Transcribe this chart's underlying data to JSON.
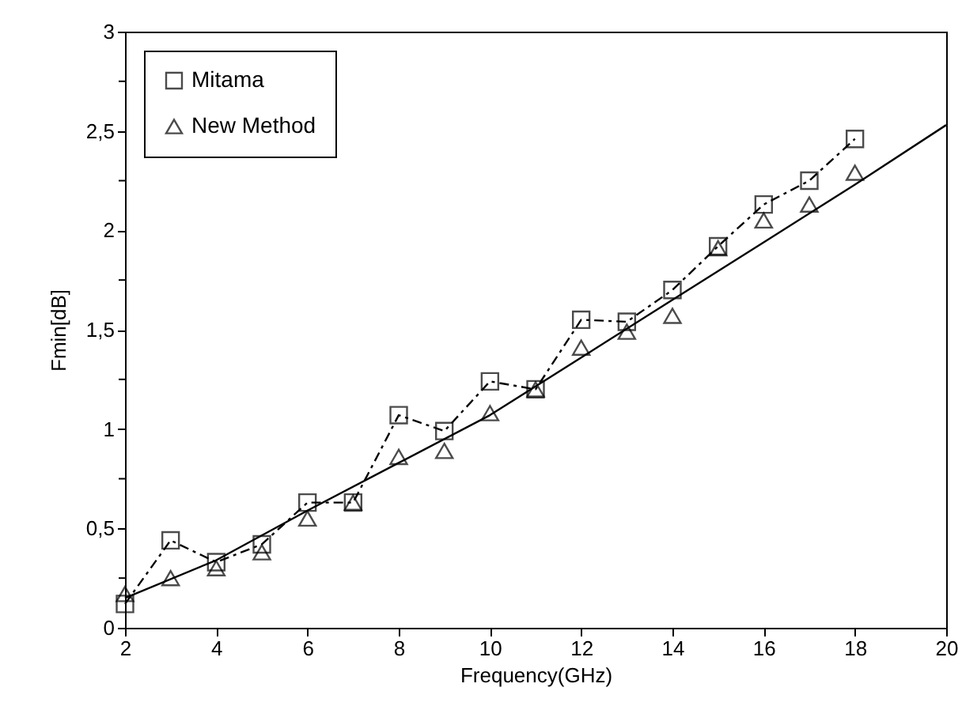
{
  "chart_data": {
    "type": "line",
    "xlabel": "Frequency(GHz)",
    "ylabel": "Fmin[dB]",
    "xlim": [
      2,
      20
    ],
    "xticks": [
      2,
      4,
      6,
      8,
      10,
      12,
      14,
      16,
      18,
      20
    ],
    "ylim": [
      0,
      3
    ],
    "yticks": [
      0,
      {
        "value": 0.25,
        "label": null
      },
      {
        "value": 0.5,
        "label": "0,5"
      },
      {
        "value": 0.75,
        "label": null
      },
      1,
      {
        "value": 1.25,
        "label": null
      },
      {
        "value": 1.5,
        "label": "1,5"
      },
      {
        "value": 1.75,
        "label": null
      },
      2,
      {
        "value": 2.25,
        "label": null
      },
      {
        "value": 2.5,
        "label": "2,5"
      },
      {
        "value": 2.75,
        "label": null
      },
      3
    ],
    "legend": "top left",
    "grid": false,
    "series": [
      {
        "name": "Mitama",
        "color": "#000000",
        "marker": "square",
        "line_style": "dashed",
        "x": [
          2,
          3,
          4,
          5,
          6,
          7,
          8,
          9,
          10,
          11,
          12,
          13,
          14,
          15,
          16,
          17,
          18
        ],
        "values": [
          0.12,
          0.44,
          0.33,
          0.42,
          0.63,
          0.63,
          1.07,
          0.99,
          1.24,
          1.2,
          1.55,
          1.54,
          1.7,
          1.92,
          2.13,
          2.25,
          2.46
        ]
      },
      {
        "name": "New Method",
        "type": "scatter",
        "color": "#000000",
        "marker": "triangle",
        "x": [
          2,
          3,
          4,
          5,
          6,
          7,
          8,
          9,
          10,
          11,
          12,
          13,
          14,
          15,
          16,
          17,
          18
        ],
        "values": [
          0.17,
          0.25,
          0.3,
          0.38,
          0.55,
          0.63,
          0.86,
          0.89,
          1.08,
          1.2,
          1.41,
          1.49,
          1.57,
          1.91,
          2.05,
          2.13,
          2.29
        ]
      },
      {
        "color": "#000000",
        "marker": "none",
        "line_style": "solid",
        "x": [
          2,
          4,
          6,
          8,
          10,
          12,
          14,
          16,
          18,
          20
        ],
        "values": [
          0.15,
          0.34,
          0.59,
          0.83,
          1.07,
          1.36,
          1.65,
          1.94,
          2.23,
          2.53
        ]
      }
    ]
  }
}
